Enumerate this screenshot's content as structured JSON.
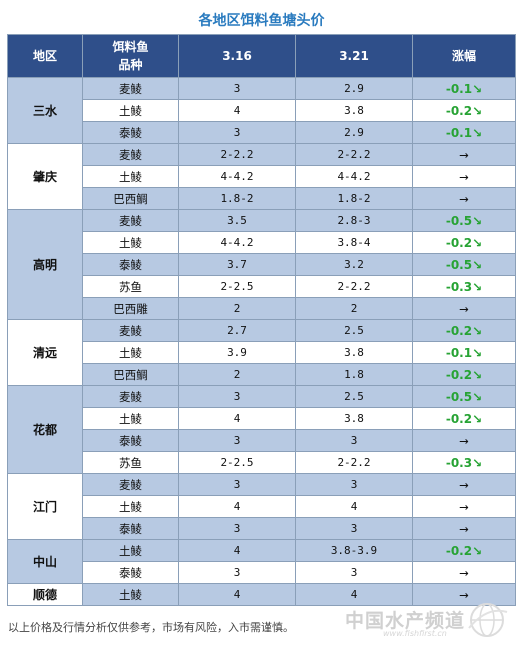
{
  "title": "各地区饵料鱼塘头价",
  "header": {
    "region": "地区",
    "species_line1": "饵料鱼",
    "species_line2": "品种",
    "date1": "3.16",
    "date2": "3.21",
    "change": "涨幅"
  },
  "regions": [
    {
      "name": "三水",
      "rows": [
        {
          "species": "麦鲮",
          "p1": "3",
          "p2": "2.9",
          "change": "-0.1",
          "trend": "down"
        },
        {
          "species": "土鲮",
          "p1": "4",
          "p2": "3.8",
          "change": "-0.2",
          "trend": "down"
        },
        {
          "species": "泰鲮",
          "p1": "3",
          "p2": "2.9",
          "change": "-0.1",
          "trend": "down"
        }
      ]
    },
    {
      "name": "肇庆",
      "rows": [
        {
          "species": "麦鲮",
          "p1": "2-2.2",
          "p2": "2-2.2",
          "change": "→",
          "trend": "flat"
        },
        {
          "species": "土鲮",
          "p1": "4-4.2",
          "p2": "4-4.2",
          "change": "→",
          "trend": "flat"
        },
        {
          "species": "巴西鲷",
          "p1": "1.8-2",
          "p2": "1.8-2",
          "change": "→",
          "trend": "flat"
        }
      ]
    },
    {
      "name": "高明",
      "rows": [
        {
          "species": "麦鲮",
          "p1": "3.5",
          "p2": "2.8-3",
          "change": "-0.5",
          "trend": "down"
        },
        {
          "species": "土鲮",
          "p1": "4-4.2",
          "p2": "3.8-4",
          "change": "-0.2",
          "trend": "down"
        },
        {
          "species": "泰鲮",
          "p1": "3.7",
          "p2": "3.2",
          "change": "-0.5",
          "trend": "down"
        },
        {
          "species": "苏鱼",
          "p1": "2-2.5",
          "p2": "2-2.2",
          "change": "-0.3",
          "trend": "down"
        },
        {
          "species": "巴西雕",
          "p1": "2",
          "p2": "2",
          "change": "→",
          "trend": "flat"
        }
      ]
    },
    {
      "name": "清远",
      "rows": [
        {
          "species": "麦鲮",
          "p1": "2.7",
          "p2": "2.5",
          "change": "-0.2",
          "trend": "down"
        },
        {
          "species": "土鲮",
          "p1": "3.9",
          "p2": "3.8",
          "change": "-0.1",
          "trend": "down"
        },
        {
          "species": "巴西鲷",
          "p1": "2",
          "p2": "1.8",
          "change": "-0.2",
          "trend": "down"
        }
      ]
    },
    {
      "name": "花都",
      "rows": [
        {
          "species": "麦鲮",
          "p1": "3",
          "p2": "2.5",
          "change": "-0.5",
          "trend": "down"
        },
        {
          "species": "土鲮",
          "p1": "4",
          "p2": "3.8",
          "change": "-0.2",
          "trend": "down"
        },
        {
          "species": "泰鲮",
          "p1": "3",
          "p2": "3",
          "change": "→",
          "trend": "flat"
        },
        {
          "species": "苏鱼",
          "p1": "2-2.5",
          "p2": "2-2.2",
          "change": "-0.3",
          "trend": "down"
        }
      ]
    },
    {
      "name": "江门",
      "rows": [
        {
          "species": "麦鲮",
          "p1": "3",
          "p2": "3",
          "change": "→",
          "trend": "flat"
        },
        {
          "species": "土鲮",
          "p1": "4",
          "p2": "4",
          "change": "→",
          "trend": "flat"
        },
        {
          "species": "泰鲮",
          "p1": "3",
          "p2": "3",
          "change": "→",
          "trend": "flat"
        }
      ]
    },
    {
      "name": "中山",
      "rows": [
        {
          "species": "土鲮",
          "p1": "4",
          "p2": "3.8-3.9",
          "change": "-0.2",
          "trend": "down"
        },
        {
          "species": "泰鲮",
          "p1": "3",
          "p2": "3",
          "change": "→",
          "trend": "flat"
        }
      ]
    },
    {
      "name": "顺德",
      "rows": [
        {
          "species": "土鲮",
          "p1": "4",
          "p2": "4",
          "change": "→",
          "trend": "flat"
        }
      ]
    }
  ],
  "footer_note": "以上价格及行情分析仅供参考，市场有风险，入市需谨慎。",
  "watermark": {
    "name": "中国水产频道",
    "url": "www.fishfirst.cn"
  },
  "colors": {
    "header_bg": "#2f4f8a",
    "shade": "#b7c9e2",
    "down": "#27a334",
    "title": "#2a7bbf"
  }
}
